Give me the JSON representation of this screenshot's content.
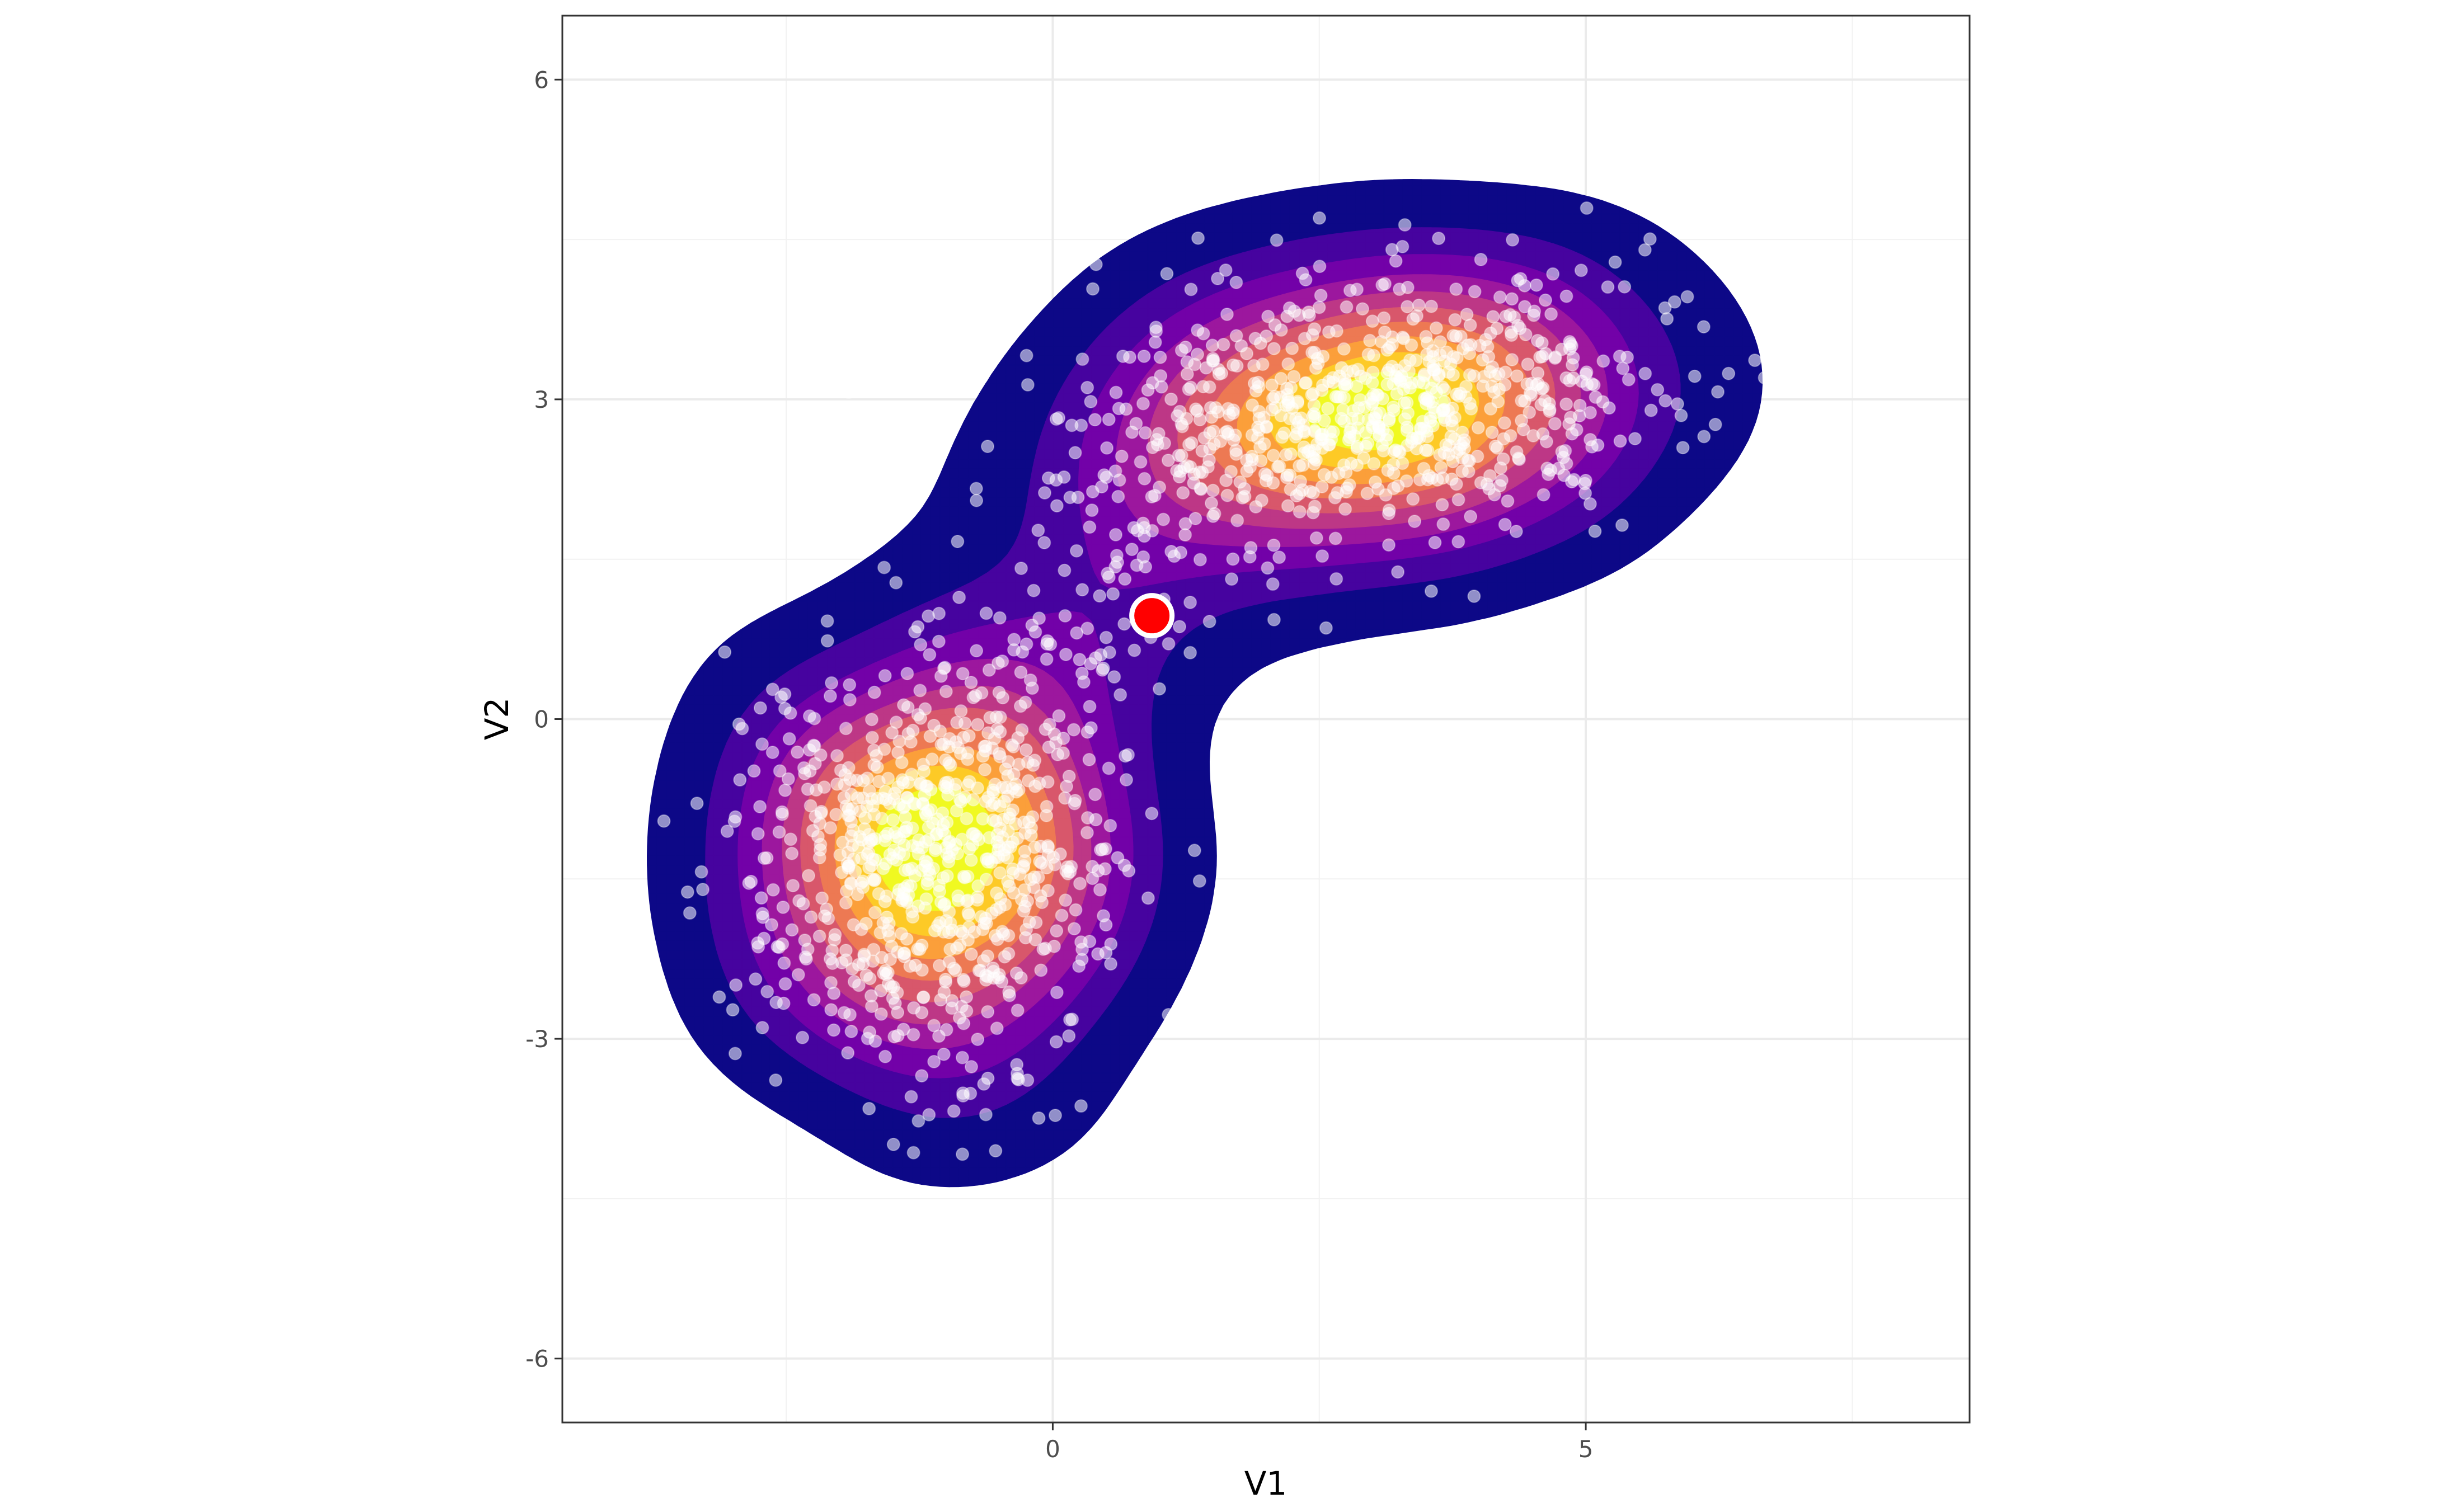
{
  "chart_data": {
    "type": "scatter",
    "title": "",
    "xlabel": "V1",
    "ylabel": "V2",
    "xlim": [
      -4.6,
      8.6
    ],
    "ylim": [
      -6.6,
      6.6
    ],
    "x_ticks": [
      0,
      5
    ],
    "x_tick_labels": [
      "0",
      "5"
    ],
    "y_ticks": [
      -6,
      -3,
      0,
      3,
      6
    ],
    "y_tick_labels": [
      "-6",
      "-3",
      "0",
      "3",
      "6"
    ],
    "grid": true,
    "legend": "none",
    "density_layers": {
      "description_of_mapping": "filled 2D density contours, plasma palette",
      "levels": 9,
      "palette": [
        "#0d0887",
        "#46039f",
        "#7201a8",
        "#9c179e",
        "#bd3786",
        "#d8576b",
        "#ed7953",
        "#fb9f3a",
        "#fdca26",
        "#f0f921"
      ]
    },
    "clusters": [
      {
        "center": [
          -1.2,
          -1.4
        ],
        "sd": [
          0.85,
          0.95
        ],
        "rotation_deg": 15,
        "n": 780
      },
      {
        "center": [
          3.0,
          2.9
        ],
        "sd": [
          1.35,
          0.6
        ],
        "rotation_deg": 5,
        "n": 780
      }
    ],
    "bridge": {
      "from": [
        -0.6,
        -0.2
      ],
      "to": [
        1.6,
        2.4
      ],
      "n": 120
    },
    "point_color": "#ffffff",
    "point_alpha": 0.55,
    "highlight_point": {
      "x": 0.93,
      "y": 0.97,
      "fill": "#ff0000",
      "stroke": "#ffffff"
    }
  }
}
